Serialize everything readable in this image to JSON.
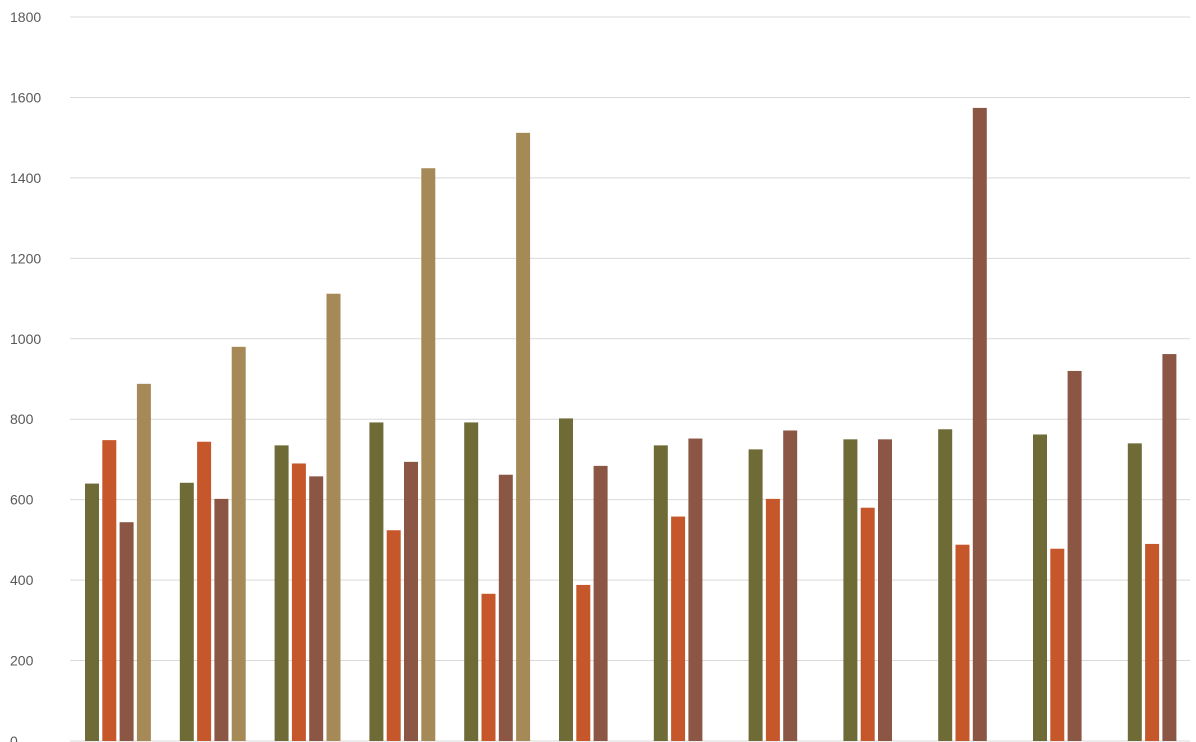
{
  "chart_data": {
    "type": "bar",
    "title": "",
    "xlabel": "",
    "ylabel": "",
    "ylim": [
      0,
      1800
    ],
    "yticks": [
      0,
      200,
      400,
      600,
      800,
      1000,
      1200,
      1400,
      1600,
      1800
    ],
    "grid": true,
    "legend": "none",
    "categories": [
      "",
      "",
      "",
      "",
      "",
      "",
      "",
      "",
      "",
      "",
      "",
      ""
    ],
    "series": [
      {
        "color": "#6e6b36",
        "values": [
          640,
          642,
          735,
          792,
          792,
          802,
          735,
          725,
          750,
          775,
          762,
          740
        ]
      },
      {
        "color": "#c6572b",
        "values": [
          748,
          744,
          690,
          524,
          366,
          388,
          558,
          602,
          580,
          488,
          478,
          490
        ]
      },
      {
        "color": "#8b5744",
        "values": [
          544,
          602,
          658,
          694,
          662,
          684,
          752,
          772,
          750,
          1574,
          920,
          962
        ]
      },
      {
        "color": "#a58a57",
        "values": [
          888,
          980,
          1112,
          1424,
          1512,
          null,
          null,
          null,
          null,
          null,
          null,
          null
        ]
      }
    ]
  }
}
